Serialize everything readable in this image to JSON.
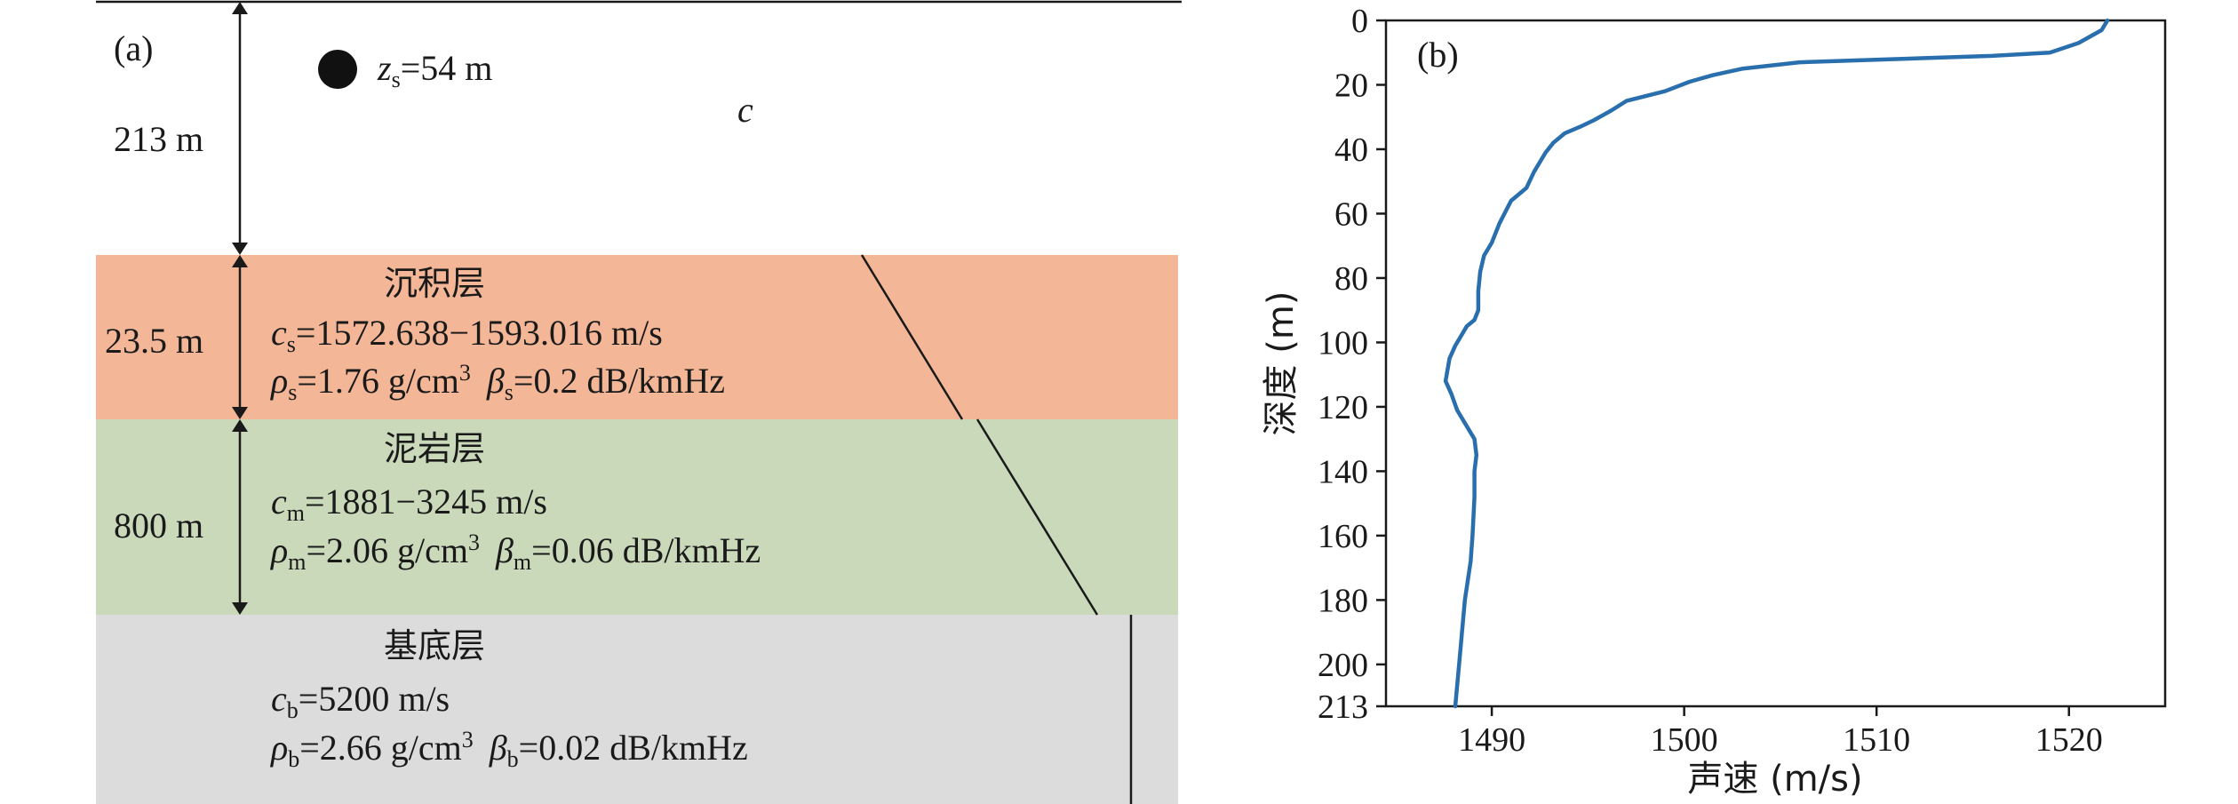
{
  "panel_a": {
    "label": "(a)",
    "water": {
      "thickness": "213 m",
      "source_symbol": "z",
      "source_sub": "s",
      "source_value": "=54 m",
      "sound_speed_symbol": "c"
    },
    "sediment": {
      "name": "沉积层",
      "thickness": "23.5 m",
      "c_symbol": "c",
      "c_sub": "s",
      "c_value": "=1572.638−1593.016 m/s",
      "rho_symbol": "ρ",
      "rho_sub": "s",
      "rho_value": "=1.76 g/cm",
      "rho_sup": "3",
      "beta_symbol": "β",
      "beta_sub": "s",
      "beta_value": "=0.2 dB/kmHz",
      "color": "#f3b696"
    },
    "mudstone": {
      "name": "泥岩层",
      "thickness": "800 m",
      "c_symbol": "c",
      "c_sub": "m",
      "c_value": "=1881−3245 m/s",
      "rho_symbol": "ρ",
      "rho_sub": "m",
      "rho_value": "=2.06 g/cm",
      "rho_sup": "3",
      "beta_symbol": "β",
      "beta_sub": "m",
      "beta_value": "=0.06 dB/kmHz",
      "color": "#cad9ba"
    },
    "basement": {
      "name": "基底层",
      "c_symbol": "c",
      "c_sub": "b",
      "c_value": "=5200 m/s",
      "rho_symbol": "ρ",
      "rho_sub": "b",
      "rho_value": "=2.66 g/cm",
      "rho_sup": "3",
      "beta_symbol": "β",
      "beta_sub": "b",
      "beta_value": "=0.02 dB/kmHz",
      "color": "#dcdcdc"
    }
  },
  "chart_data": {
    "type": "line",
    "panel_label": "(b)",
    "xlabel": "声速 (m/s)",
    "ylabel": "深度 (m)",
    "xlim": [
      1484.5,
      1525.0
    ],
    "ylim": [
      213,
      0
    ],
    "y_inverted": true,
    "xticks": [
      1490,
      1500,
      1510,
      1520
    ],
    "yticks": [
      0,
      20,
      40,
      60,
      80,
      100,
      120,
      140,
      160,
      180,
      200,
      213
    ],
    "line_color": "#2a6fad",
    "series": [
      {
        "x": [
          1522.0,
          1521.7,
          1520.5,
          1519.0,
          1516.0,
          1511.0,
          1506.0,
          1503.0,
          1501.5,
          1500.3,
          1499.0,
          1497.0,
          1496.2,
          1495.3,
          1494.6,
          1493.8,
          1493.2,
          1492.8,
          1492.5,
          1492.2,
          1491.8,
          1491.0,
          1490.4,
          1490.0,
          1489.6,
          1489.4,
          1489.3,
          1489.3,
          1489.1,
          1488.7,
          1488.5,
          1488.1,
          1487.8,
          1487.6,
          1487.9,
          1488.2,
          1488.7,
          1489.1,
          1489.2,
          1489.1,
          1489.1,
          1489.0,
          1488.9,
          1488.6,
          1488.3,
          1488.1
        ],
        "y": [
          0,
          3,
          7,
          10,
          11,
          12,
          13,
          15,
          17,
          19,
          22,
          25,
          28,
          31,
          33,
          35,
          38,
          41,
          44,
          47,
          52,
          56,
          63,
          69,
          73,
          78,
          84,
          90,
          93,
          95,
          97,
          101,
          105,
          112,
          116,
          121,
          126,
          130,
          135,
          140,
          148,
          160,
          168,
          180,
          200,
          213
        ]
      }
    ]
  }
}
